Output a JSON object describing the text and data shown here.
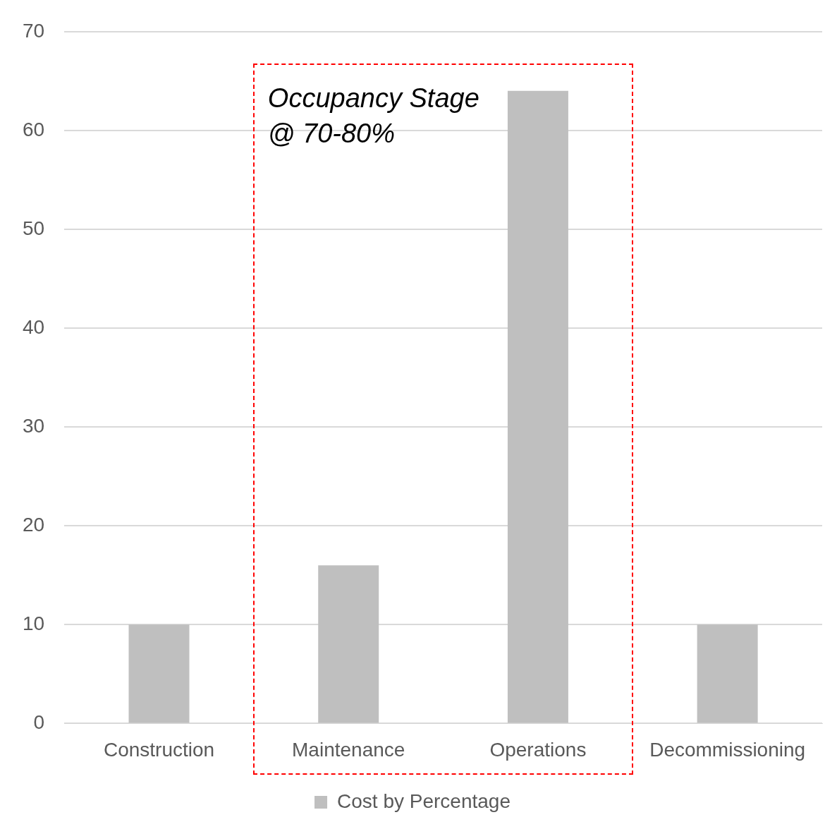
{
  "chart_data": {
    "type": "bar",
    "categories": [
      "Construction",
      "Maintenance",
      "Operations",
      "Decommissioning"
    ],
    "series": [
      {
        "name": "Cost by Percentage",
        "color": "#bfbfbf",
        "values": [
          10,
          16,
          64,
          10
        ]
      }
    ],
    "ylim": [
      0,
      70
    ],
    "yticks": [
      0,
      10,
      20,
      30,
      40,
      50,
      60,
      70
    ],
    "grid": "y",
    "legend": "bottom",
    "annotations": [
      "Occupancy Stage @ 70-80%"
    ]
  }
}
